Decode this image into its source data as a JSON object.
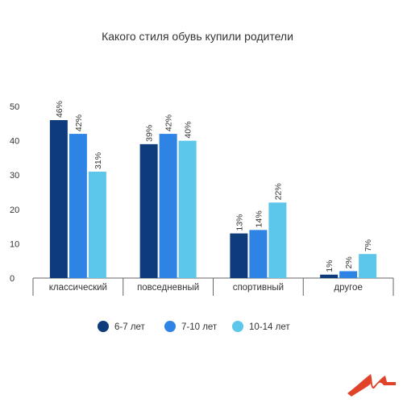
{
  "chart_data": {
    "type": "bar",
    "title": "Какого стиля обувь купили родители",
    "xlabel": "",
    "ylabel": "",
    "ylim": [
      0,
      50
    ],
    "yticks": [
      0,
      10,
      20,
      30,
      40,
      50
    ],
    "grid": false,
    "legend_position": "bottom",
    "categories": [
      "классический",
      "повседневный",
      "спортивный",
      "другое"
    ],
    "series": [
      {
        "name": "6-7 лет",
        "color": "#0e3b7c",
        "values": [
          46,
          39,
          13,
          1
        ],
        "labels": [
          "46%",
          "39%",
          "13%",
          "1%"
        ]
      },
      {
        "name": "7-10 лет",
        "color": "#2d84e4",
        "values": [
          42,
          42,
          14,
          2
        ],
        "labels": [
          "42%",
          "42%",
          "14%",
          "2%"
        ]
      },
      {
        "name": "10-14 лет",
        "color": "#5cc7ea",
        "values": [
          31,
          40,
          22,
          7
        ],
        "labels": [
          "31%",
          "40%",
          "22%",
          "7%"
        ]
      }
    ]
  },
  "logo": {
    "icon": "brand-logo-icon",
    "color": "#e0422a"
  }
}
